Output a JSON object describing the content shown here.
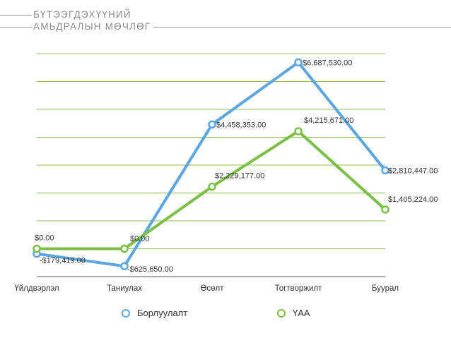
{
  "title_line1": "БҮТЭЭГДЭХҮҮНИЙ",
  "title_line2": "АМЬДРАЛЫН МӨЧЛӨГ",
  "chart_data": {
    "type": "line",
    "categories": [
      "Үйлдвэрлэл",
      "Таниулах",
      "Өсөлт",
      "Тогтворжилт",
      "Буурал"
    ],
    "series": [
      {
        "name": "Борлуулалт",
        "color": "#5aa6e0",
        "values": [
          -179419,
          -625650,
          4458353,
          6687530,
          2810447
        ],
        "labels": [
          "-$179,419.00",
          "-$625,650.00",
          "$4,458,353.00",
          "$6,687,530.00",
          "$2,810,447.00"
        ]
      },
      {
        "name": "ҮАА",
        "color": "#7bbf44",
        "values": [
          0,
          0,
          2229177,
          4215671,
          1405224
        ],
        "labels": [
          "$0.00",
          "$0.00",
          "$2,229,177.00",
          "$4,215,671.00",
          "$1,405,224.00"
        ]
      }
    ],
    "ylim": [
      -1000000,
      7000000
    ],
    "grid": true,
    "legend": "bottom",
    "xlabel": "",
    "ylabel": ""
  }
}
